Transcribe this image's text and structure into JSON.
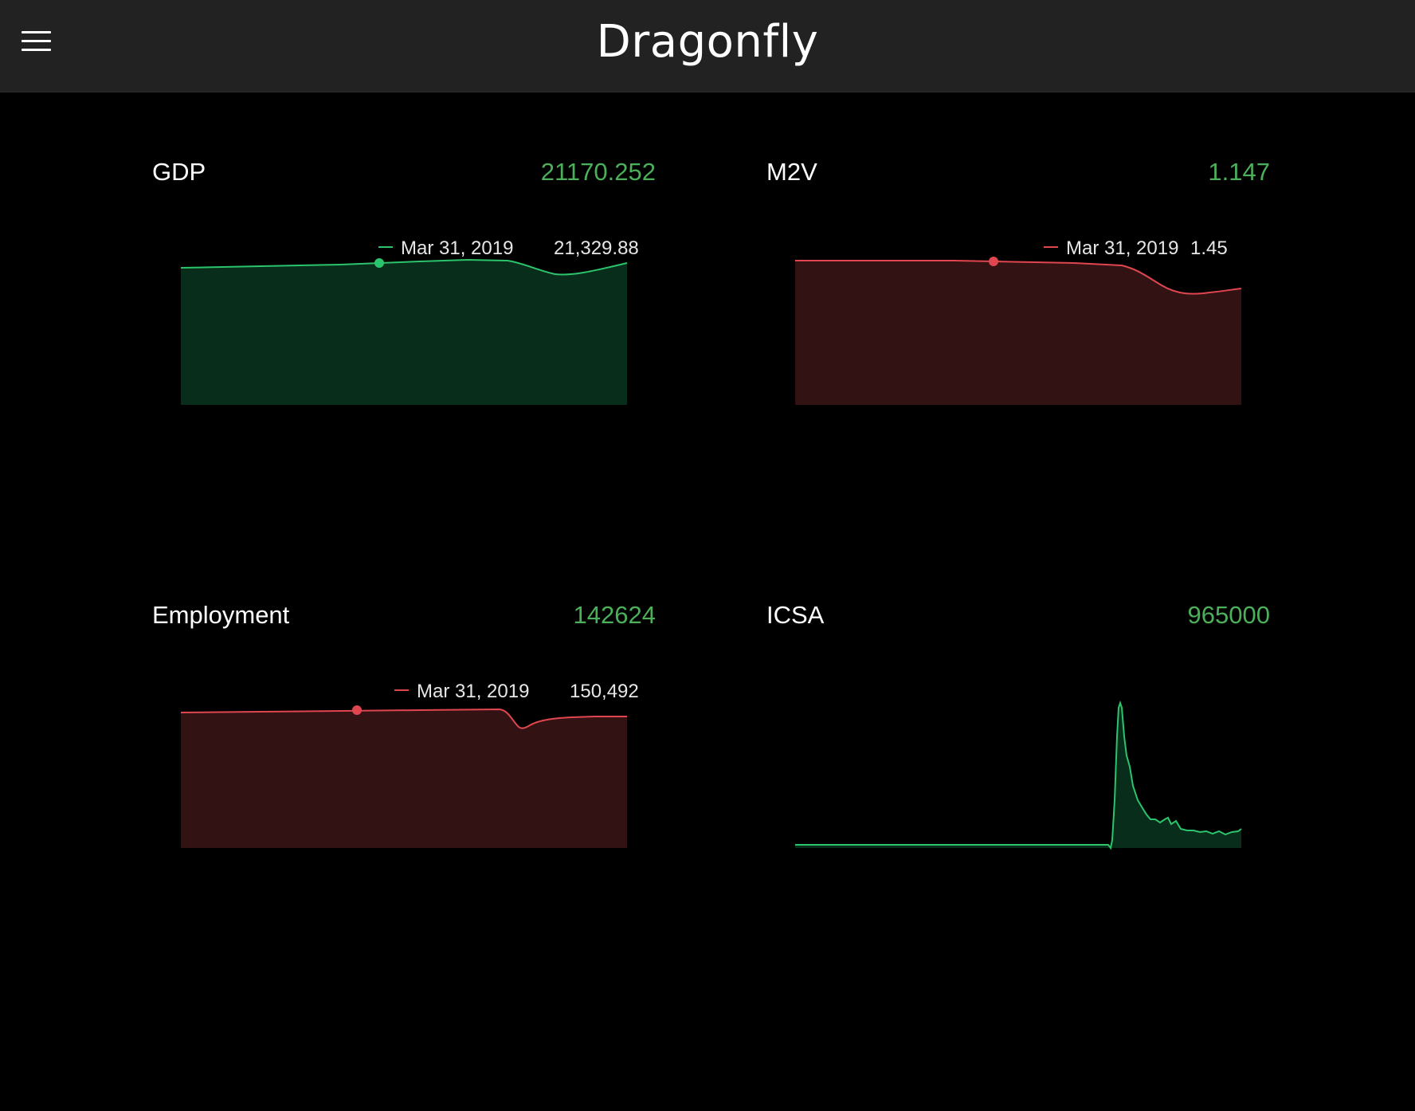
{
  "app": {
    "title": "Dragonfly",
    "menu_icon": "hamburger-menu-icon"
  },
  "colors": {
    "up_line": "#2bc36b",
    "up_fill": "#082e1b",
    "down_line": "#e0464f",
    "down_fill": "#331213",
    "value_text": "#4caf5a"
  },
  "cards": [
    {
      "title": "GDP",
      "value": "21170.252",
      "trend": "up",
      "legend": {
        "date": "Mar 31, 2019",
        "value": "21,329.88"
      }
    },
    {
      "title": "M2V",
      "value": "1.147",
      "trend": "down",
      "legend": {
        "date": "Mar 31, 2019",
        "value": "1.45"
      }
    },
    {
      "title": "Employment",
      "value": "142624",
      "trend": "down",
      "legend": {
        "date": "Mar 31, 2019",
        "value": "150,492"
      }
    },
    {
      "title": "ICSA",
      "value": "965000",
      "trend": "up",
      "legend": null
    }
  ]
}
